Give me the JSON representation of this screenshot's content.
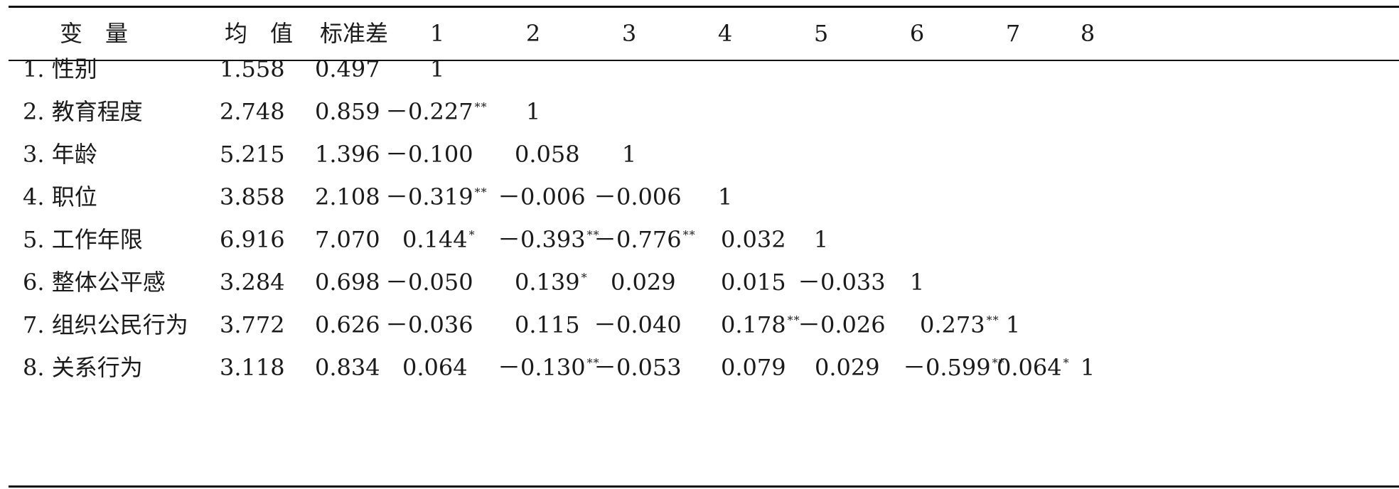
{
  "table": {
    "headers": [
      "变　量",
      "均　值",
      "标准差",
      "1",
      "2",
      "3",
      "4",
      "5",
      "6",
      "7",
      "8"
    ],
    "rows": [
      {
        "label": "1. 性别",
        "mean": "1.558",
        "sd": "0.497",
        "cells": [
          {
            "v": "1",
            "sig": ""
          }
        ]
      },
      {
        "label": "2. 教育程度",
        "mean": "2.748",
        "sd": "0.859",
        "cells": [
          {
            "v": "－0.227",
            "sig": "**"
          },
          {
            "v": "1",
            "sig": ""
          }
        ]
      },
      {
        "label": "3. 年龄",
        "mean": "5.215",
        "sd": "1.396",
        "cells": [
          {
            "v": "－0.100",
            "sig": ""
          },
          {
            "v": "0.058",
            "sig": ""
          },
          {
            "v": "1",
            "sig": ""
          }
        ]
      },
      {
        "label": "4. 职位",
        "mean": "3.858",
        "sd": "2.108",
        "cells": [
          {
            "v": "－0.319",
            "sig": "**"
          },
          {
            "v": "－0.006",
            "sig": ""
          },
          {
            "v": "－0.006",
            "sig": ""
          },
          {
            "v": "1",
            "sig": ""
          }
        ]
      },
      {
        "label": "5. 工作年限",
        "mean": "6.916",
        "sd": "7.070",
        "cells": [
          {
            "v": "0.144",
            "sig": "*"
          },
          {
            "v": "－0.393",
            "sig": "**"
          },
          {
            "v": "－0.776",
            "sig": "**"
          },
          {
            "v": "0.032",
            "sig": ""
          },
          {
            "v": "1",
            "sig": ""
          }
        ]
      },
      {
        "label": "6. 整体公平感",
        "mean": "3.284",
        "sd": "0.698",
        "cells": [
          {
            "v": "－0.050",
            "sig": ""
          },
          {
            "v": "0.139",
            "sig": "*"
          },
          {
            "v": "0.029",
            "sig": ""
          },
          {
            "v": "0.015",
            "sig": ""
          },
          {
            "v": "－0.033",
            "sig": ""
          },
          {
            "v": "1",
            "sig": ""
          }
        ]
      },
      {
        "label": "7. 组织公民行为",
        "mean": "3.772",
        "sd": "0.626",
        "cells": [
          {
            "v": "－0.036",
            "sig": ""
          },
          {
            "v": "0.115",
            "sig": ""
          },
          {
            "v": "－0.040",
            "sig": ""
          },
          {
            "v": "0.178",
            "sig": "**"
          },
          {
            "v": "－0.026",
            "sig": ""
          },
          {
            "v": "0.273",
            "sig": "**"
          },
          {
            "v": "1",
            "sig": ""
          }
        ]
      },
      {
        "label": "8. 关系行为",
        "mean": "3.118",
        "sd": "0.834",
        "cells": [
          {
            "v": "0.064",
            "sig": ""
          },
          {
            "v": "－0.130",
            "sig": "**"
          },
          {
            "v": "－0.053",
            "sig": ""
          },
          {
            "v": "0.079",
            "sig": ""
          },
          {
            "v": "0.029",
            "sig": ""
          },
          {
            "v": "－0.599",
            "sig": "**"
          },
          {
            "v": "0.064",
            "sig": "*"
          },
          {
            "v": "1",
            "sig": ""
          }
        ]
      }
    ]
  }
}
